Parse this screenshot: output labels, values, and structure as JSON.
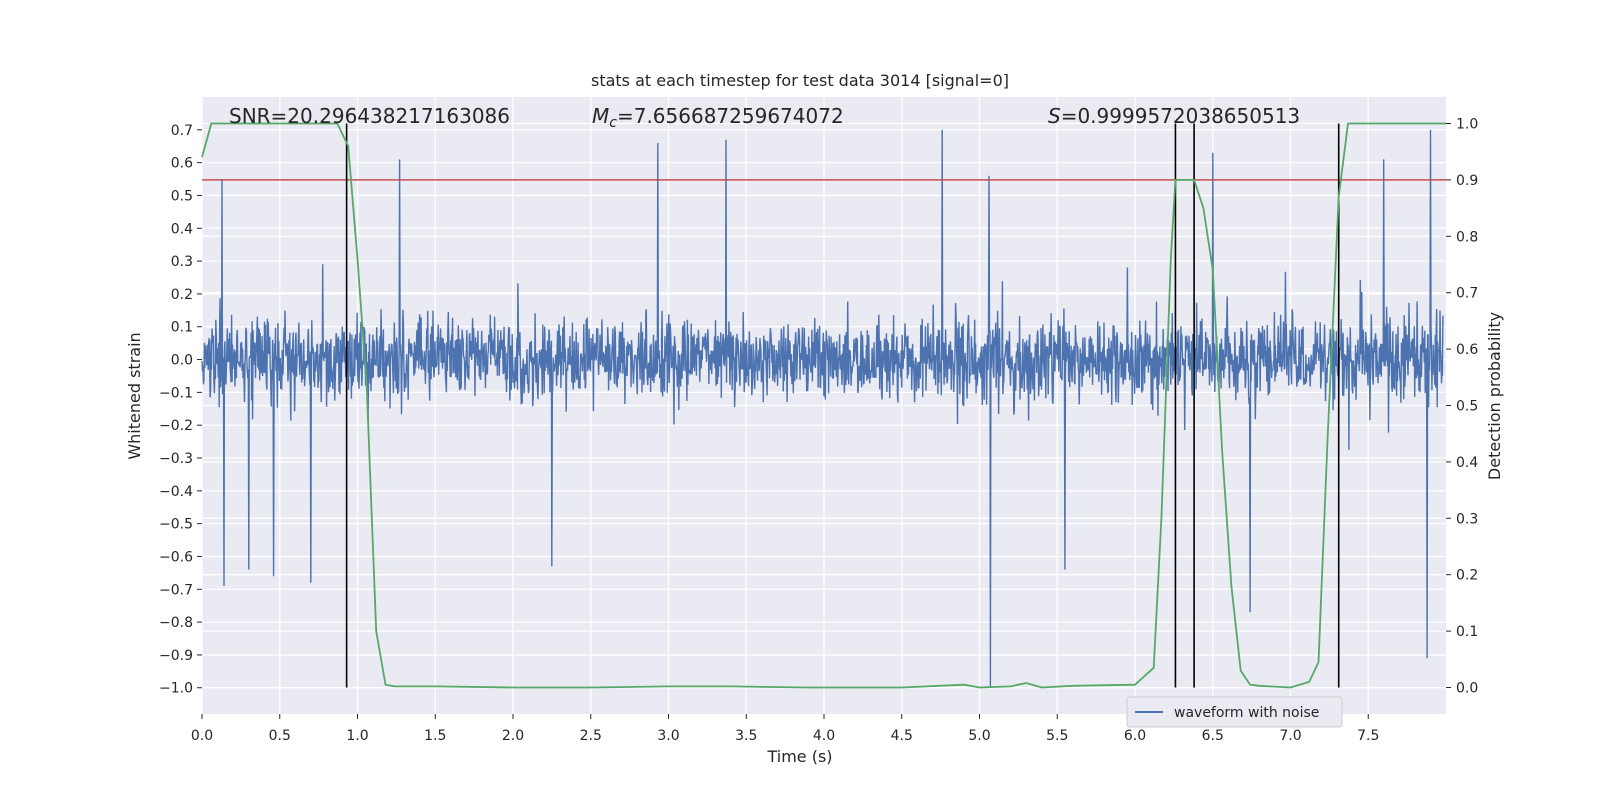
{
  "chart_data": {
    "type": "line",
    "title": "stats at each timestep for test data 3014 [signal=0]",
    "xlabel": "Time (s)",
    "ylabel": "Whitened strain",
    "y2label": "Detection probability",
    "xlim": [
      0.0,
      8.0
    ],
    "ylim": [
      -1.08,
      0.8
    ],
    "y2lim": [
      -0.047,
      1.047
    ],
    "xticks": [
      0.0,
      0.5,
      1.0,
      1.5,
      2.0,
      2.5,
      3.0,
      3.5,
      4.0,
      4.5,
      5.0,
      5.5,
      6.0,
      6.5,
      7.0,
      7.5
    ],
    "xtick_labels": [
      "0.0",
      "0.5",
      "1.0",
      "1.5",
      "2.0",
      "2.5",
      "3.0",
      "3.5",
      "4.0",
      "4.5",
      "5.0",
      "5.5",
      "6.0",
      "6.5",
      "7.0",
      "7.5"
    ],
    "yticks": [
      0.7,
      0.6,
      0.5,
      0.4,
      0.3,
      0.2,
      0.1,
      0.0,
      -0.1,
      -0.2,
      -0.3,
      -0.4,
      -0.5,
      -0.6,
      -0.7,
      -0.8,
      -0.9,
      -1.0
    ],
    "ytick_labels": [
      "0.7",
      "0.6",
      "0.5",
      "0.4",
      "0.3",
      "0.2",
      "0.1",
      "0.0",
      "−0.1",
      "−0.2",
      "−0.3",
      "−0.4",
      "−0.5",
      "−0.6",
      "−0.7",
      "−0.8",
      "−0.9",
      "−1.0"
    ],
    "y2ticks": [
      1.0,
      0.9,
      0.8,
      0.7,
      0.6,
      0.5,
      0.4,
      0.3,
      0.2,
      0.1,
      0.0
    ],
    "y2tick_labels": [
      "1.0",
      "0.9",
      "0.8",
      "0.7",
      "0.6",
      "0.5",
      "0.4",
      "0.3",
      "0.2",
      "0.1",
      "0.0"
    ],
    "annotations": {
      "snr": "SNR=20.296438217163086",
      "mc_symbol": "M",
      "mc_sub": "c",
      "mc_value": "=7.656687259674072",
      "s_symbol": "S",
      "s_value": "=0.9999572038650513"
    },
    "threshold": {
      "value": 0.9,
      "axis": "right",
      "color": "#c44e52"
    },
    "vertical_lines": [
      0.93,
      6.26,
      6.38,
      7.31
    ],
    "series": [
      {
        "name": "waveform with noise",
        "axis": "left",
        "color": "#4c72b0",
        "kind": "noise",
        "typical_amplitude": 0.25,
        "spikes": [
          {
            "x": 0.13,
            "y": 0.55
          },
          {
            "x": 0.14,
            "y": -0.69
          },
          {
            "x": 0.3,
            "y": -0.64
          },
          {
            "x": 0.46,
            "y": -0.66
          },
          {
            "x": 0.7,
            "y": -0.68
          },
          {
            "x": 1.27,
            "y": 0.61
          },
          {
            "x": 2.25,
            "y": -0.63
          },
          {
            "x": 2.93,
            "y": 0.66
          },
          {
            "x": 3.37,
            "y": 0.67
          },
          {
            "x": 4.76,
            "y": 0.7
          },
          {
            "x": 5.07,
            "y": -1.0
          },
          {
            "x": 5.06,
            "y": 0.56
          },
          {
            "x": 5.55,
            "y": -0.64
          },
          {
            "x": 6.5,
            "y": 0.63
          },
          {
            "x": 6.74,
            "y": -0.77
          },
          {
            "x": 7.6,
            "y": 0.61
          },
          {
            "x": 7.88,
            "y": -0.91
          },
          {
            "x": 7.9,
            "y": 0.7
          }
        ]
      },
      {
        "name": "detection probability",
        "axis": "right",
        "color": "#55a868",
        "x": [
          0.0,
          0.06,
          0.12,
          0.3,
          0.6,
          0.87,
          0.94,
          1.0,
          1.06,
          1.12,
          1.18,
          1.24,
          1.5,
          2.0,
          2.5,
          3.0,
          3.4,
          3.9,
          4.5,
          4.9,
          5.0,
          5.2,
          5.3,
          5.4,
          5.6,
          6.0,
          6.12,
          6.17,
          6.23,
          6.26,
          6.31,
          6.38,
          6.44,
          6.5,
          6.56,
          6.62,
          6.68,
          6.74,
          6.8,
          7.0,
          7.12,
          7.18,
          7.24,
          7.31,
          7.37,
          7.5,
          8.0
        ],
        "values": [
          0.94,
          1.0,
          1.0,
          1.0,
          1.0,
          1.0,
          0.96,
          0.76,
          0.53,
          0.1,
          0.005,
          0.002,
          0.002,
          0.0,
          0.0,
          0.002,
          0.002,
          0.0,
          0.0,
          0.005,
          0.0,
          0.002,
          0.008,
          0.0,
          0.003,
          0.005,
          0.035,
          0.3,
          0.76,
          0.9,
          0.9,
          0.9,
          0.85,
          0.74,
          0.42,
          0.18,
          0.03,
          0.005,
          0.003,
          0.0,
          0.01,
          0.045,
          0.45,
          0.87,
          1.0,
          1.0,
          1.0
        ]
      }
    ],
    "legend": {
      "entries": [
        "waveform with noise"
      ],
      "location": "bottom-right"
    }
  }
}
